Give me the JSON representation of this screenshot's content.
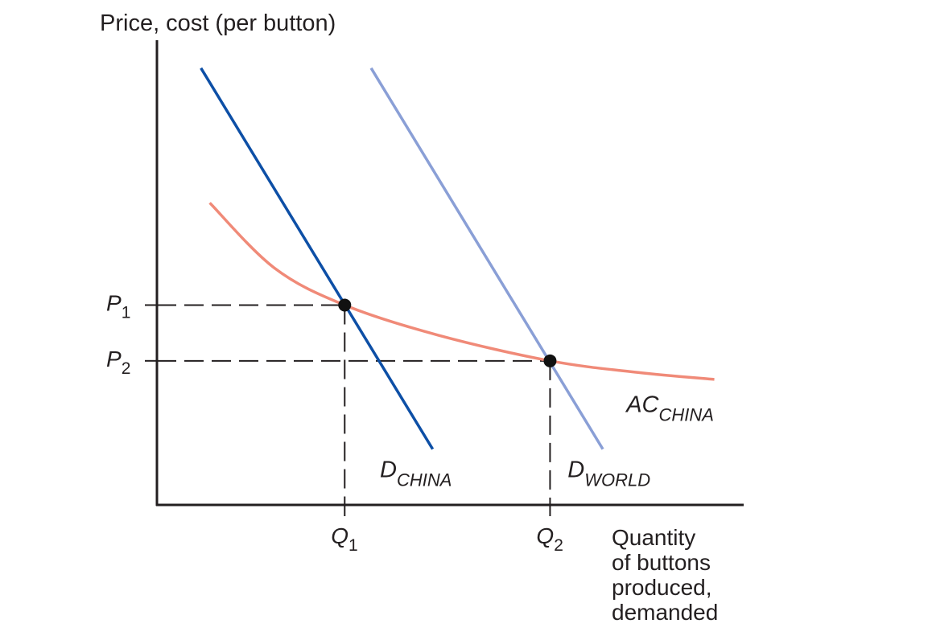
{
  "chart_data": {
    "type": "line",
    "ylabel": "Price, cost (per button)",
    "xlabel_lines": [
      "Quantity",
      "of buttons",
      "produced,",
      "demanded"
    ],
    "xlim": [
      0,
      100
    ],
    "ylim": [
      0,
      100
    ],
    "grid": false,
    "legend": "none",
    "x_ticks": [
      {
        "name": "Q",
        "sub": "1",
        "value": 32
      },
      {
        "name": "Q",
        "sub": "2",
        "value": 67
      }
    ],
    "y_ticks": [
      {
        "name": "P",
        "sub": "1",
        "value": 43
      },
      {
        "name": "P",
        "sub": "2",
        "value": 31
      }
    ],
    "series": [
      {
        "name": "D",
        "sub": "CHINA",
        "kind": "line",
        "color": "#0d4fa6",
        "points": [
          [
            7.5,
            94
          ],
          [
            47,
            12
          ]
        ],
        "label_at": [
          38,
          6
        ]
      },
      {
        "name": "D",
        "sub": "WORLD",
        "kind": "line",
        "color": "#8a9fd6",
        "points": [
          [
            36.5,
            94
          ],
          [
            76,
            12
          ]
        ],
        "label_at": [
          70,
          6
        ]
      },
      {
        "name": "AC",
        "sub": "CHINA",
        "kind": "curve",
        "color": "#f08a78",
        "points": [
          [
            9,
            65
          ],
          [
            20,
            51
          ],
          [
            32,
            43
          ],
          [
            48,
            36.5
          ],
          [
            67,
            31
          ],
          [
            82,
            28.5
          ],
          [
            95,
            27
          ]
        ],
        "label_at": [
          80,
          20
        ]
      }
    ],
    "equilibrium_points": [
      {
        "x": 32,
        "y": 43
      },
      {
        "x": 67,
        "y": 31
      }
    ]
  }
}
